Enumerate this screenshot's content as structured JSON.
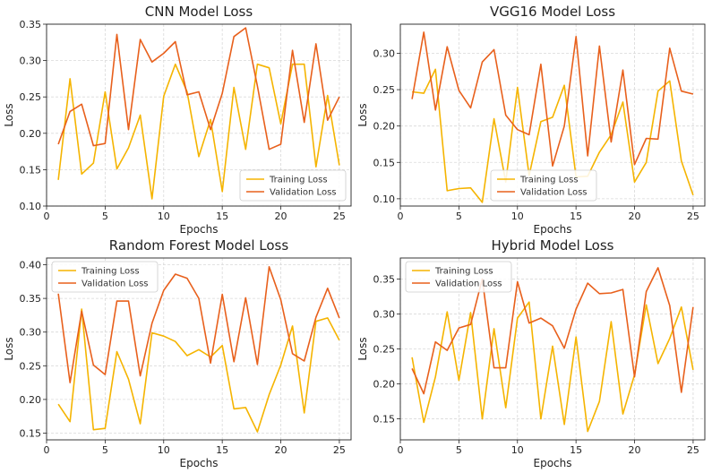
{
  "chart_data": [
    {
      "type": "line",
      "title": "CNN Model Loss",
      "xlabel": "Epochs",
      "ylabel": "Loss",
      "xlim": [
        0,
        26
      ],
      "ylim": [
        0.1,
        0.35
      ],
      "xticks": [
        0,
        5,
        10,
        15,
        20,
        25
      ],
      "yticks": [
        0.1,
        0.15,
        0.2,
        0.25,
        0.3,
        0.35
      ],
      "ytick_labels": [
        "0.10",
        "0.15",
        "0.20",
        "0.25",
        "0.30",
        "0.35"
      ],
      "grid": true,
      "legend_position": "lower-right",
      "x": [
        1,
        2,
        3,
        4,
        5,
        6,
        7,
        8,
        9,
        10,
        11,
        12,
        13,
        14,
        15,
        16,
        17,
        18,
        19,
        20,
        21,
        22,
        23,
        24,
        25
      ],
      "series": [
        {
          "name": "Training Loss",
          "color": "#F5B400",
          "values": [
            0.136,
            0.275,
            0.144,
            0.159,
            0.257,
            0.151,
            0.18,
            0.225,
            0.11,
            0.251,
            0.295,
            0.257,
            0.168,
            0.219,
            0.12,
            0.263,
            0.178,
            0.295,
            0.29,
            0.213,
            0.295,
            0.295,
            0.154,
            0.252,
            0.156
          ]
        },
        {
          "name": "Validation Loss",
          "color": "#E8601C",
          "values": [
            0.185,
            0.23,
            0.24,
            0.183,
            0.186,
            0.336,
            0.205,
            0.329,
            0.298,
            0.31,
            0.326,
            0.253,
            0.257,
            0.205,
            0.255,
            0.333,
            0.345,
            0.265,
            0.178,
            0.185,
            0.314,
            0.215,
            0.323,
            0.218,
            0.25
          ]
        }
      ]
    },
    {
      "type": "line",
      "title": "VGG16 Model Loss",
      "xlabel": "Epochs",
      "ylabel": "Loss",
      "xlim": [
        0,
        26
      ],
      "ylim": [
        0.09,
        0.34
      ],
      "xticks": [
        0,
        5,
        10,
        15,
        20,
        25
      ],
      "yticks": [
        0.1,
        0.15,
        0.2,
        0.25,
        0.3
      ],
      "ytick_labels": [
        "0.10",
        "0.15",
        "0.20",
        "0.25",
        "0.30"
      ],
      "grid": true,
      "legend_position": "lower-center",
      "x": [
        1,
        2,
        3,
        4,
        5,
        6,
        7,
        8,
        9,
        10,
        11,
        12,
        13,
        14,
        15,
        16,
        17,
        18,
        19,
        20,
        21,
        22,
        23,
        24,
        25
      ],
      "series": [
        {
          "name": "Training Loss",
          "color": "#F5B400",
          "values": [
            0.247,
            0.245,
            0.278,
            0.111,
            0.114,
            0.115,
            0.095,
            0.21,
            0.123,
            0.253,
            0.132,
            0.206,
            0.212,
            0.256,
            0.13,
            0.131,
            0.164,
            0.188,
            0.233,
            0.123,
            0.15,
            0.248,
            0.262,
            0.152,
            0.105
          ]
        },
        {
          "name": "Validation Loss",
          "color": "#E8601C",
          "values": [
            0.237,
            0.329,
            0.222,
            0.309,
            0.249,
            0.225,
            0.288,
            0.305,
            0.215,
            0.195,
            0.188,
            0.285,
            0.145,
            0.2,
            0.323,
            0.159,
            0.31,
            0.178,
            0.277,
            0.147,
            0.183,
            0.182,
            0.307,
            0.248,
            0.244
          ]
        }
      ]
    },
    {
      "type": "line",
      "title": "Random Forest Model Loss",
      "xlabel": "Epochs",
      "ylabel": "Loss",
      "xlim": [
        0,
        26
      ],
      "ylim": [
        0.14,
        0.41
      ],
      "xticks": [
        0,
        5,
        10,
        15,
        20,
        25
      ],
      "yticks": [
        0.15,
        0.2,
        0.25,
        0.3,
        0.35,
        0.4
      ],
      "ytick_labels": [
        "0.15",
        "0.20",
        "0.25",
        "0.30",
        "0.35",
        "0.40"
      ],
      "grid": true,
      "legend_position": "upper-left",
      "x": [
        1,
        2,
        3,
        4,
        5,
        6,
        7,
        8,
        9,
        10,
        11,
        12,
        13,
        14,
        15,
        16,
        17,
        18,
        19,
        20,
        21,
        22,
        23,
        24,
        25
      ],
      "series": [
        {
          "name": "Training Loss",
          "color": "#F5B400",
          "values": [
            0.193,
            0.167,
            0.334,
            0.155,
            0.157,
            0.271,
            0.23,
            0.164,
            0.299,
            0.294,
            0.286,
            0.265,
            0.274,
            0.263,
            0.28,
            0.186,
            0.188,
            0.152,
            0.207,
            0.251,
            0.309,
            0.18,
            0.316,
            0.321,
            0.288
          ]
        },
        {
          "name": "Validation Loss",
          "color": "#E8601C",
          "values": [
            0.357,
            0.225,
            0.331,
            0.251,
            0.237,
            0.346,
            0.346,
            0.235,
            0.313,
            0.362,
            0.386,
            0.38,
            0.35,
            0.254,
            0.356,
            0.256,
            0.351,
            0.252,
            0.397,
            0.348,
            0.268,
            0.257,
            0.322,
            0.365,
            0.321
          ]
        }
      ]
    },
    {
      "type": "line",
      "title": "Hybrid Model Loss",
      "xlabel": "Epochs",
      "ylabel": "Loss",
      "xlim": [
        0,
        26
      ],
      "ylim": [
        0.12,
        0.38
      ],
      "xticks": [
        0,
        5,
        10,
        15,
        20,
        25
      ],
      "yticks": [
        0.15,
        0.2,
        0.25,
        0.3,
        0.35
      ],
      "ytick_labels": [
        "0.15",
        "0.20",
        "0.25",
        "0.30",
        "0.35"
      ],
      "grid": true,
      "legend_position": "upper-left",
      "x": [
        1,
        2,
        3,
        4,
        5,
        6,
        7,
        8,
        9,
        10,
        11,
        12,
        13,
        14,
        15,
        16,
        17,
        18,
        19,
        20,
        21,
        22,
        23,
        24,
        25
      ],
      "series": [
        {
          "name": "Training Loss",
          "color": "#F5B400",
          "values": [
            0.238,
            0.145,
            0.21,
            0.303,
            0.205,
            0.302,
            0.15,
            0.279,
            0.166,
            0.294,
            0.317,
            0.15,
            0.254,
            0.142,
            0.267,
            0.132,
            0.175,
            0.289,
            0.157,
            0.213,
            0.313,
            0.229,
            0.265,
            0.31,
            0.22
          ]
        },
        {
          "name": "Validation Loss",
          "color": "#E8601C",
          "values": [
            0.222,
            0.186,
            0.26,
            0.248,
            0.28,
            0.285,
            0.35,
            0.223,
            0.223,
            0.346,
            0.287,
            0.294,
            0.283,
            0.251,
            0.307,
            0.344,
            0.329,
            0.33,
            0.335,
            0.21,
            0.332,
            0.366,
            0.312,
            0.188,
            0.31
          ]
        }
      ]
    }
  ]
}
